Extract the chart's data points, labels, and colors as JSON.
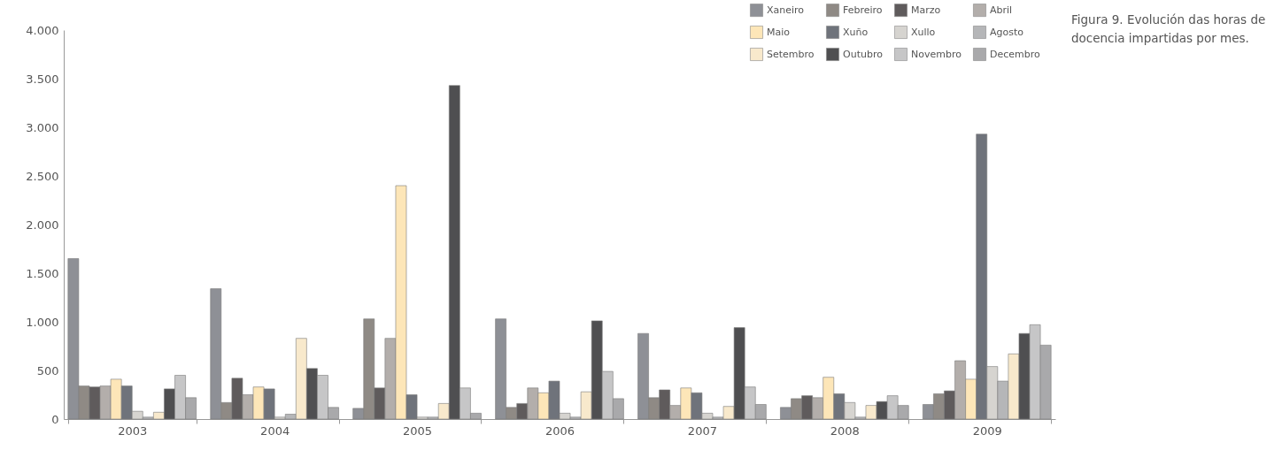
{
  "chart_data": {
    "type": "bar",
    "categories": [
      "2003",
      "2004",
      "2005",
      "2006",
      "2007",
      "2008",
      "2009"
    ],
    "series": [
      {
        "name": "Xaneiro",
        "color": "#8e9096",
        "values": [
          1650,
          1340,
          110,
          1030,
          880,
          120,
          150
        ]
      },
      {
        "name": "Febreiro",
        "color": "#8f8a85",
        "values": [
          340,
          170,
          1030,
          120,
          220,
          210,
          260
        ]
      },
      {
        "name": "Marzo",
        "color": "#5f5b5c",
        "values": [
          330,
          420,
          320,
          160,
          300,
          240,
          290
        ]
      },
      {
        "name": "Abril",
        "color": "#b3aeab",
        "values": [
          340,
          250,
          830,
          320,
          140,
          220,
          600
        ]
      },
      {
        "name": "Maio",
        "color": "#fde6b8",
        "values": [
          410,
          330,
          2400,
          270,
          320,
          430,
          410
        ]
      },
      {
        "name": "Xuño",
        "color": "#6f737b",
        "values": [
          340,
          310,
          250,
          390,
          270,
          260,
          2930
        ]
      },
      {
        "name": "Xullo",
        "color": "#d6d4d0",
        "values": [
          80,
          20,
          20,
          60,
          60,
          170,
          540
        ]
      },
      {
        "name": "Agosto",
        "color": "#b5b6b8",
        "values": [
          20,
          50,
          20,
          20,
          20,
          20,
          390
        ]
      },
      {
        "name": "Setembro",
        "color": "#f8e9cc",
        "values": [
          70,
          830,
          160,
          280,
          130,
          140,
          670
        ]
      },
      {
        "name": "Outubro",
        "color": "#4f4f51",
        "values": [
          310,
          520,
          3430,
          1010,
          940,
          180,
          880
        ]
      },
      {
        "name": "Novembro",
        "color": "#c6c6c7",
        "values": [
          450,
          450,
          320,
          490,
          330,
          240,
          970
        ]
      },
      {
        "name": "Decembro",
        "color": "#a9a9ab",
        "values": [
          220,
          120,
          60,
          210,
          150,
          140,
          760
        ]
      }
    ],
    "ylim": [
      0,
      4000
    ],
    "yticks": [
      0,
      {
        "value": 500,
        "label": "500"
      },
      {
        "value": 1000,
        "label": "1.000"
      },
      {
        "value": 1500,
        "label": "1.500"
      },
      {
        "value": 2000,
        "label": "2.000"
      },
      {
        "value": 2500,
        "label": "2.500"
      },
      {
        "value": 3000,
        "label": "3.000"
      },
      {
        "value": 3500,
        "label": "3.500"
      },
      {
        "value": 4000,
        "label": "4.000"
      }
    ],
    "legend": "top right",
    "annotations": [
      "Figura 9. Evolución das horas de docencia impartidas por mes."
    ]
  }
}
